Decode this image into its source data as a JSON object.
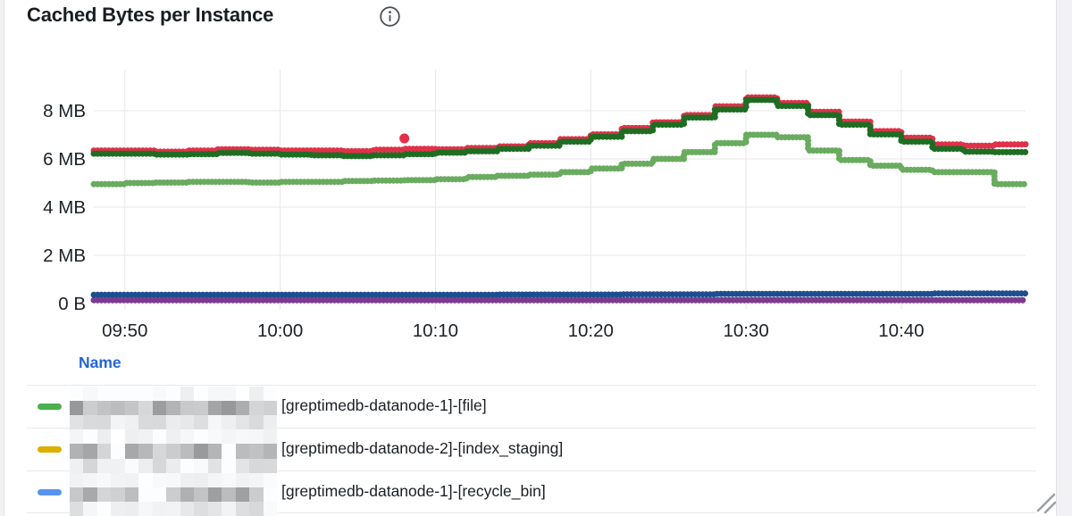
{
  "panel": {
    "title": "Cached Bytes per Instance",
    "info_icon": "info-circle-icon"
  },
  "colors": {
    "page_bg": "#f2f2f4",
    "panel_bg": "#ffffff",
    "grid": "#e7e7ea",
    "axis_text": "#1c2127",
    "legend_header_blue": "#2465d3"
  },
  "chart_data": {
    "type": "line",
    "style": "dotted-step-points",
    "title": "Cached Bytes per Instance",
    "ylabel": "",
    "xlabel": "",
    "unit": "bytes",
    "ylim_mb": [
      0,
      9.6
    ],
    "grid": true,
    "legend_position": "bottom-table",
    "x_start_minute": 0,
    "x_step_minutes": 2,
    "x_ticks": [
      {
        "minute": 2,
        "label": "09:50"
      },
      {
        "minute": 12,
        "label": "10:00"
      },
      {
        "minute": 22,
        "label": "10:10"
      },
      {
        "minute": 32,
        "label": "10:20"
      },
      {
        "minute": 42,
        "label": "10:30"
      },
      {
        "minute": 52,
        "label": "10:40"
      }
    ],
    "y_ticks": [
      {
        "mb": 0,
        "label": "0 B"
      },
      {
        "mb": 2,
        "label": "2 MB"
      },
      {
        "mb": 4,
        "label": "4 MB"
      },
      {
        "mb": 6,
        "label": "6 MB"
      },
      {
        "mb": 8,
        "label": "8 MB"
      }
    ],
    "series": [
      {
        "id": "series-red",
        "color": "#e03149",
        "width": 7,
        "values_mb": [
          6.35,
          6.35,
          6.3,
          6.35,
          6.4,
          6.38,
          6.35,
          6.35,
          6.32,
          6.38,
          6.42,
          6.4,
          6.45,
          6.52,
          6.65,
          6.82,
          7.02,
          7.28,
          7.52,
          7.82,
          8.18,
          8.55,
          8.32,
          7.95,
          7.55,
          7.15,
          6.88,
          6.6,
          6.55,
          6.6,
          6.7
        ]
      },
      {
        "id": "series-dark-green",
        "color": "#1e6d23",
        "width": 7,
        "values_mb": [
          6.22,
          6.22,
          6.18,
          6.2,
          6.25,
          6.22,
          6.18,
          6.15,
          6.12,
          6.15,
          6.2,
          6.26,
          6.32,
          6.42,
          6.55,
          6.72,
          6.92,
          7.15,
          7.42,
          7.72,
          8.05,
          8.45,
          8.2,
          7.82,
          7.42,
          7.02,
          6.72,
          6.42,
          6.3,
          6.28,
          6.25
        ]
      },
      {
        "id": "series-light-green",
        "color": "#69ab5f",
        "width": 7,
        "values_mb": [
          4.95,
          5.0,
          5.02,
          5.05,
          5.05,
          5.02,
          5.05,
          5.05,
          5.08,
          5.1,
          5.12,
          5.16,
          5.25,
          5.3,
          5.35,
          5.45,
          5.6,
          5.8,
          6.0,
          6.28,
          6.65,
          7.0,
          6.9,
          6.35,
          5.95,
          5.72,
          5.55,
          5.45,
          5.45,
          4.95,
          4.88
        ]
      },
      {
        "id": "series-purple",
        "color": "#7d3a8f",
        "width": 7,
        "values_mb": [
          0.14,
          0.14,
          0.14,
          0.14,
          0.14,
          0.14,
          0.14,
          0.14,
          0.14,
          0.14,
          0.14,
          0.14,
          0.14,
          0.14,
          0.14,
          0.14,
          0.14,
          0.14,
          0.14,
          0.14,
          0.14,
          0.14,
          0.14,
          0.14,
          0.14,
          0.14,
          0.14,
          0.14,
          0.14,
          0.14,
          0.14
        ]
      },
      {
        "id": "series-navy",
        "color": "#1e4e8f",
        "width": 7,
        "values_mb": [
          0.36,
          0.36,
          0.36,
          0.36,
          0.36,
          0.36,
          0.36,
          0.36,
          0.36,
          0.36,
          0.36,
          0.36,
          0.36,
          0.37,
          0.37,
          0.37,
          0.37,
          0.38,
          0.38,
          0.38,
          0.4,
          0.4,
          0.4,
          0.4,
          0.4,
          0.4,
          0.4,
          0.42,
          0.42,
          0.42,
          0.42
        ]
      }
    ],
    "outlier_points": [
      {
        "series": "series-red",
        "minute": 20,
        "value_mb": 6.85
      }
    ]
  },
  "legend": {
    "header": "Name",
    "rows": [
      {
        "color": "#4caf50",
        "redacted_prefix": true,
        "label": "[greptimedb-datanode-1]-[file]"
      },
      {
        "color": "#dfaf00",
        "redacted_prefix": true,
        "label": "[greptimedb-datanode-2]-[index_staging]"
      },
      {
        "color": "#5794f2",
        "redacted_prefix": true,
        "label": "[greptimedb-datanode-1]-[recycle_bin]"
      }
    ]
  }
}
